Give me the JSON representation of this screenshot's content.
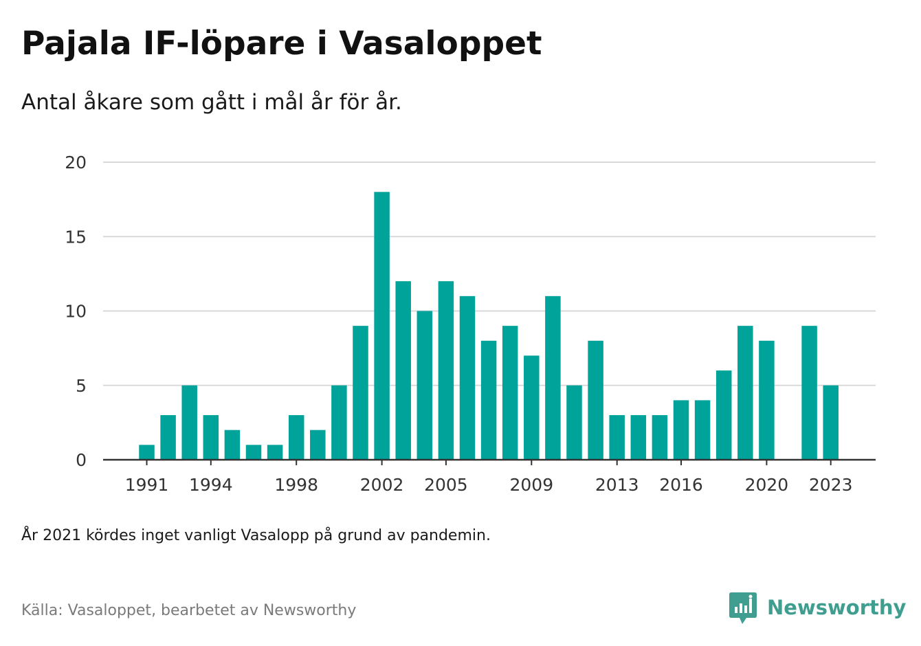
{
  "title": "Pajala IF-löpare i Vasaloppet",
  "subtitle": "Antal åkare som gått i mål år för år.",
  "note": "År 2021 kördes inget vanligt Vasalopp på grund av pandemin.",
  "source": "Källa: Vasaloppet, bearbetet av Newsworthy",
  "brand": {
    "name": "Newsworthy",
    "icon": "newsworthy-logo-icon"
  },
  "colors": {
    "bar": "#00a39a",
    "grid": "#d9d9d9",
    "axis": "#333333",
    "brand": "#3f9e8f"
  },
  "chart_data": {
    "type": "bar",
    "title": "Pajala IF-löpare i Vasaloppet",
    "subtitle": "Antal åkare som gått i mål år för år.",
    "xlabel": "",
    "ylabel": "",
    "ylim": [
      0,
      20
    ],
    "yticks": [
      0,
      5,
      10,
      15,
      20
    ],
    "xticks": [
      1991,
      1994,
      1998,
      2002,
      2005,
      2009,
      2013,
      2016,
      2020,
      2023
    ],
    "grid": true,
    "legend": "none",
    "categories": [
      1991,
      1992,
      1993,
      1994,
      1995,
      1996,
      1997,
      1998,
      1999,
      2000,
      2001,
      2002,
      2003,
      2004,
      2005,
      2006,
      2007,
      2008,
      2009,
      2010,
      2011,
      2012,
      2013,
      2014,
      2015,
      2016,
      2017,
      2018,
      2019,
      2020,
      2021,
      2022,
      2023
    ],
    "values": [
      1,
      3,
      5,
      3,
      2,
      1,
      1,
      3,
      2,
      5,
      9,
      18,
      12,
      10,
      12,
      11,
      8,
      9,
      7,
      11,
      5,
      8,
      3,
      3,
      3,
      4,
      4,
      6,
      9,
      8,
      0,
      9,
      5
    ]
  }
}
